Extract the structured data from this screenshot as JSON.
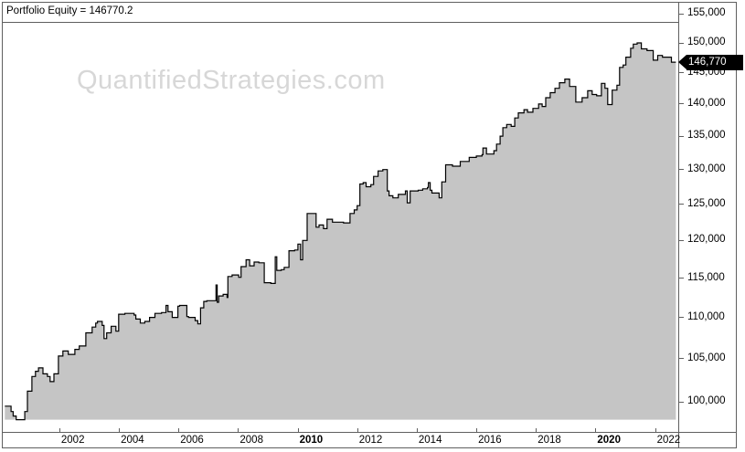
{
  "title": "Portfolio Equity = 146770.2",
  "watermark": "QuantifiedStrategies.com",
  "colors": {
    "background": "#ffffff",
    "area_fill": "#c5c5c5",
    "line": "#000000",
    "border": "#5f5f5f",
    "watermark": "#d7d7d7",
    "tag_bg": "#000000",
    "tag_text": "#ffffff"
  },
  "y_axis": {
    "side": "right",
    "tick_values": [
      155000,
      150000,
      145000,
      140000,
      135000,
      130000,
      125000,
      120000,
      115000,
      110000,
      105000,
      100000
    ],
    "tick_labels": [
      "155,000",
      "150,000",
      "145,000",
      "140,000",
      "135,000",
      "130,000",
      "125,000",
      "120,000",
      "115,000",
      "110,000",
      "105,000",
      "100,000"
    ],
    "tag": {
      "value": 146770,
      "label": "146,770"
    }
  },
  "x_axis": {
    "ticks": [
      {
        "year": 2002,
        "label": "2002",
        "bold": false
      },
      {
        "year": 2004,
        "label": "2004",
        "bold": false
      },
      {
        "year": 2006,
        "label": "2006",
        "bold": false
      },
      {
        "year": 2008,
        "label": "2008",
        "bold": false
      },
      {
        "year": 2010,
        "label": "2010",
        "bold": true
      },
      {
        "year": 2012,
        "label": "2012",
        "bold": false
      },
      {
        "year": 2014,
        "label": "2014",
        "bold": false
      },
      {
        "year": 2016,
        "label": "2016",
        "bold": false
      },
      {
        "year": 2018,
        "label": "2018",
        "bold": false
      },
      {
        "year": 2020,
        "label": "2020",
        "bold": true
      },
      {
        "year": 2022,
        "label": "2022",
        "bold": false
      }
    ]
  },
  "chart_data": {
    "type": "area",
    "subtype": "step-after",
    "title": "Portfolio Equity",
    "scale_y": "log",
    "grid": false,
    "legend": "none",
    "x_unit": "decimal_year",
    "xlim": [
      2000.1,
      2022.78
    ],
    "ylim": [
      96650,
      153600
    ],
    "baseline": 98000,
    "final_value": 146770.2,
    "series": [
      {
        "name": "Portfolio Equity",
        "points": [
          [
            2000.17,
            99500
          ],
          [
            2000.38,
            98900
          ],
          [
            2000.45,
            98400
          ],
          [
            2000.55,
            98000
          ],
          [
            2000.84,
            98900
          ],
          [
            2000.93,
            101200
          ],
          [
            2001.08,
            102900
          ],
          [
            2001.2,
            103500
          ],
          [
            2001.3,
            103900
          ],
          [
            2001.45,
            103200
          ],
          [
            2001.6,
            102900
          ],
          [
            2001.69,
            102300
          ],
          [
            2001.82,
            103200
          ],
          [
            2001.97,
            105300
          ],
          [
            2002.12,
            105900
          ],
          [
            2002.3,
            105500
          ],
          [
            2002.52,
            106100
          ],
          [
            2002.67,
            106500
          ],
          [
            2002.89,
            108100
          ],
          [
            2003.1,
            108800
          ],
          [
            2003.22,
            109300
          ],
          [
            2003.28,
            109500
          ],
          [
            2003.44,
            109000
          ],
          [
            2003.5,
            107400
          ],
          [
            2003.59,
            108100
          ],
          [
            2003.74,
            108900
          ],
          [
            2003.9,
            108300
          ],
          [
            2003.99,
            110400
          ],
          [
            2004.2,
            110500
          ],
          [
            2004.51,
            110300
          ],
          [
            2004.57,
            109800
          ],
          [
            2004.72,
            109300
          ],
          [
            2004.87,
            109500
          ],
          [
            2005.03,
            110000
          ],
          [
            2005.21,
            110500
          ],
          [
            2005.43,
            110600
          ],
          [
            2005.58,
            111500
          ],
          [
            2005.65,
            110700
          ],
          [
            2005.79,
            110000
          ],
          [
            2005.98,
            111400
          ],
          [
            2006.04,
            111500
          ],
          [
            2006.28,
            110100
          ],
          [
            2006.34,
            110000
          ],
          [
            2006.56,
            109600
          ],
          [
            2006.65,
            109200
          ],
          [
            2006.74,
            111200
          ],
          [
            2006.85,
            112000
          ],
          [
            2006.95,
            112100
          ],
          [
            2007.26,
            114100
          ],
          [
            2007.3,
            111900
          ],
          [
            2007.35,
            112700
          ],
          [
            2007.5,
            112900
          ],
          [
            2007.63,
            112500
          ],
          [
            2007.66,
            115200
          ],
          [
            2007.8,
            115400
          ],
          [
            2008.02,
            115100
          ],
          [
            2008.1,
            116500
          ],
          [
            2008.27,
            117400
          ],
          [
            2008.39,
            116600
          ],
          [
            2008.54,
            117100
          ],
          [
            2008.7,
            117000
          ],
          [
            2008.88,
            114400
          ],
          [
            2009.1,
            114300
          ],
          [
            2009.25,
            117800
          ],
          [
            2009.3,
            116000
          ],
          [
            2009.45,
            116100
          ],
          [
            2009.55,
            116400
          ],
          [
            2009.71,
            118600
          ],
          [
            2009.9,
            118700
          ],
          [
            2010.01,
            119500
          ],
          [
            2010.1,
            117400
          ],
          [
            2010.17,
            120000
          ],
          [
            2010.32,
            123700
          ],
          [
            2010.62,
            121800
          ],
          [
            2010.72,
            122100
          ],
          [
            2010.87,
            121600
          ],
          [
            2010.99,
            122900
          ],
          [
            2011.17,
            122500
          ],
          [
            2011.54,
            122400
          ],
          [
            2011.76,
            123700
          ],
          [
            2011.9,
            124200
          ],
          [
            2012.0,
            124800
          ],
          [
            2012.09,
            127900
          ],
          [
            2012.2,
            128100
          ],
          [
            2012.3,
            127500
          ],
          [
            2012.46,
            127800
          ],
          [
            2012.55,
            129000
          ],
          [
            2012.7,
            129800
          ],
          [
            2012.86,
            130000
          ],
          [
            2013.01,
            126900
          ],
          [
            2013.07,
            126200
          ],
          [
            2013.2,
            125900
          ],
          [
            2013.38,
            126400
          ],
          [
            2013.62,
            126900
          ],
          [
            2013.68,
            125200
          ],
          [
            2013.78,
            126900
          ],
          [
            2014.05,
            127000
          ],
          [
            2014.2,
            127200
          ],
          [
            2014.36,
            127400
          ],
          [
            2014.39,
            128100
          ],
          [
            2014.45,
            127000
          ],
          [
            2014.51,
            126600
          ],
          [
            2014.75,
            125900
          ],
          [
            2014.84,
            128200
          ],
          [
            2014.97,
            130700
          ],
          [
            2015.2,
            130500
          ],
          [
            2015.46,
            131200
          ],
          [
            2015.76,
            131800
          ],
          [
            2016.0,
            132000
          ],
          [
            2016.19,
            132200
          ],
          [
            2016.22,
            133200
          ],
          [
            2016.34,
            132300
          ],
          [
            2016.59,
            132800
          ],
          [
            2016.68,
            133800
          ],
          [
            2016.8,
            135000
          ],
          [
            2016.89,
            136300
          ],
          [
            2017.02,
            136800
          ],
          [
            2017.17,
            136500
          ],
          [
            2017.29,
            137800
          ],
          [
            2017.41,
            138600
          ],
          [
            2017.6,
            139100
          ],
          [
            2017.72,
            138700
          ],
          [
            2017.9,
            139300
          ],
          [
            2018.09,
            140000
          ],
          [
            2018.21,
            139600
          ],
          [
            2018.33,
            141000
          ],
          [
            2018.48,
            141800
          ],
          [
            2018.64,
            142500
          ],
          [
            2018.79,
            143400
          ],
          [
            2018.97,
            144000
          ],
          [
            2019.13,
            142800
          ],
          [
            2019.34,
            140300
          ],
          [
            2019.55,
            141000
          ],
          [
            2019.74,
            142100
          ],
          [
            2019.89,
            141500
          ],
          [
            2020.04,
            141300
          ],
          [
            2020.2,
            143300
          ],
          [
            2020.32,
            142500
          ],
          [
            2020.41,
            139900
          ],
          [
            2020.56,
            142200
          ],
          [
            2020.72,
            143000
          ],
          [
            2020.81,
            145900
          ],
          [
            2020.93,
            146300
          ],
          [
            2021.02,
            147600
          ],
          [
            2021.18,
            149100
          ],
          [
            2021.27,
            149800
          ],
          [
            2021.4,
            150000
          ],
          [
            2021.54,
            149000
          ],
          [
            2021.73,
            148700
          ],
          [
            2021.94,
            147100
          ],
          [
            2022.09,
            147900
          ],
          [
            2022.25,
            147600
          ],
          [
            2022.55,
            146770
          ],
          [
            2022.7,
            146770
          ]
        ]
      }
    ]
  }
}
